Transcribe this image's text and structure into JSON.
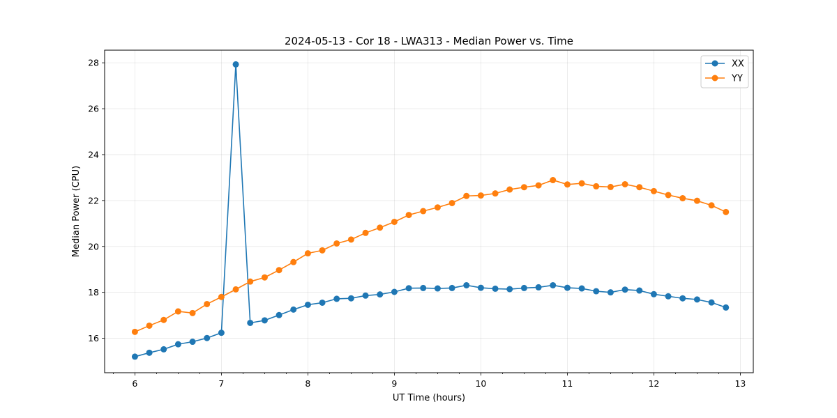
{
  "chart_data": {
    "type": "line",
    "title": "2024-05-13 - Cor 18 - LWA313 - Median Power vs. Time",
    "xlabel": "UT Time (hours)",
    "ylabel": "Median Power (CPU)",
    "xlim": [
      5.65,
      13.15
    ],
    "ylim": [
      14.5,
      28.55
    ],
    "xticks": [
      6,
      7,
      8,
      9,
      10,
      11,
      12,
      13
    ],
    "yticks": [
      16,
      18,
      20,
      22,
      24,
      26,
      28
    ],
    "x_minor_step": 0.25,
    "grid": true,
    "legend": "top-right",
    "x": [
      6.0,
      6.1667,
      6.3333,
      6.5,
      6.6667,
      6.8333,
      7.0,
      7.1667,
      7.3333,
      7.5,
      7.6667,
      7.8333,
      8.0,
      8.1667,
      8.3333,
      8.5,
      8.6667,
      8.8333,
      9.0,
      9.1667,
      9.3333,
      9.5,
      9.6667,
      9.8333,
      10.0,
      10.1667,
      10.3333,
      10.5,
      10.6667,
      10.8333,
      11.0,
      11.1667,
      11.3333,
      11.5,
      11.6667,
      11.8333,
      12.0,
      12.1667,
      12.3333,
      12.5,
      12.6667,
      12.8333
    ],
    "series": [
      {
        "name": "XX",
        "color": "#1f77b4",
        "values": [
          15.2,
          15.37,
          15.52,
          15.74,
          15.85,
          16.01,
          16.24,
          27.93,
          16.67,
          16.78,
          17.01,
          17.25,
          17.46,
          17.55,
          17.72,
          17.74,
          17.86,
          17.91,
          18.02,
          18.18,
          18.19,
          18.17,
          18.19,
          18.31,
          18.2,
          18.16,
          18.14,
          18.19,
          18.22,
          18.31,
          18.2,
          18.17,
          18.05,
          18.0,
          18.12,
          18.08,
          17.92,
          17.83,
          17.74,
          17.69,
          17.56,
          17.34
        ]
      },
      {
        "name": "YY",
        "color": "#ff7f0e",
        "values": [
          16.28,
          16.55,
          16.8,
          17.17,
          17.1,
          17.49,
          17.8,
          18.13,
          18.47,
          18.65,
          18.97,
          19.32,
          19.7,
          19.83,
          20.13,
          20.3,
          20.59,
          20.82,
          21.07,
          21.37,
          21.54,
          21.7,
          21.89,
          22.2,
          22.22,
          22.31,
          22.48,
          22.58,
          22.66,
          22.89,
          22.7,
          22.75,
          22.62,
          22.59,
          22.71,
          22.58,
          22.41,
          22.24,
          22.1,
          21.99,
          21.79,
          21.5
        ]
      }
    ]
  }
}
